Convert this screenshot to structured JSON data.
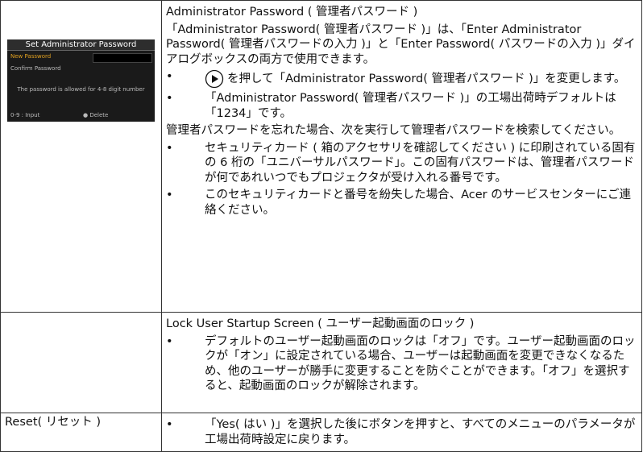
{
  "table": {
    "rows": [
      {
        "left": {
          "screenshot": {
            "title": "Set Administrator Password",
            "new_password": "New Password",
            "confirm_password": "Confirm Password",
            "hint": "The password is allowed for 4-8 digit number",
            "input": "0-9 : Input",
            "delete": "Delete"
          }
        },
        "right": {
          "heading": "Administrator Password ( 管理者パスワード )",
          "para1": "「Administrator Password( 管理者パスワード )」は、「Enter Administrator Password( 管理者パスワードの入力 )」と「Enter Password( パスワードの入力 )」ダイアログボックスの両方で使用できます。",
          "bullets1": [
            "を押して「Administrator Password( 管理者パスワード )」を変更します。",
            "「Administrator Password( 管理者パスワード )」の工場出荷時デフォルトは「1234」です。"
          ],
          "para2": "管理者パスワードを忘れた場合、次を実行して管理者パスワードを検索してください。",
          "bullets2": [
            "セキュリティカード ( 箱のアクセサリを確認してください ) に印刷されている固有の 6 桁の「ユニバーサルパスワード」。この固有パスワードは、管理者パスワードが何であれいつでもプロジェクタが受け入れる番号です。",
            "このセキュリティカードと番号を紛失した場合、Acer のサービスセンターにご連絡ください。"
          ]
        }
      },
      {
        "right": {
          "heading": "Lock User Startup Screen ( ユーザー起動画面のロック )",
          "bullets1": [
            "デフォルトのユーザー起動画面のロックは「オフ」です。ユーザー起動画面のロックが「オン」に設定されている場合、ユーザーは起動画面を変更できなくなるため、他のユーザーが勝手に変更することを防ぐことができます。「オフ」を選択すると、起動画面のロックが解除されます。"
          ]
        }
      },
      {
        "left": {
          "label": "Reset( リセット )"
        },
        "right": {
          "bullets1": [
            "「Yes( はい )」を選択した後にボタンを押すと、すべてのメニューのパラメータが工場出荷時設定に戻ります。"
          ]
        }
      }
    ]
  }
}
